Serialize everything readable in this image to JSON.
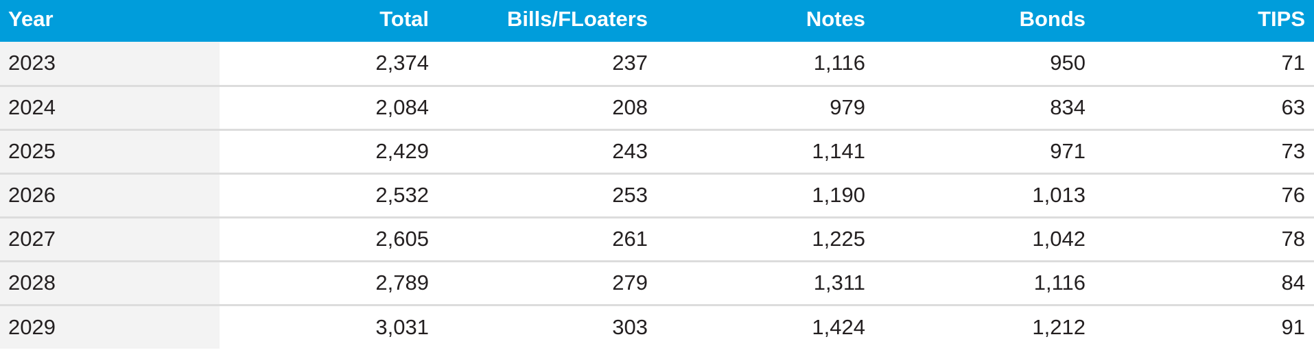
{
  "chart_data": {
    "type": "table",
    "colors": {
      "header_bg": "#009ddb",
      "header_text": "#ffffff",
      "first_col_bg": "#f3f3f3",
      "row_divider": "#dcdcdc"
    },
    "columns": [
      "Year",
      "Total",
      "Bills/FLoaters",
      "Notes",
      "Bonds",
      "TIPS"
    ],
    "rows": [
      [
        "2023",
        "2,374",
        "237",
        "1,116",
        "950",
        "71"
      ],
      [
        "2024",
        "2,084",
        "208",
        "979",
        "834",
        "63"
      ],
      [
        "2025",
        "2,429",
        "243",
        "1,141",
        "971",
        "73"
      ],
      [
        "2026",
        "2,532",
        "253",
        "1,190",
        "1,013",
        "76"
      ],
      [
        "2027",
        "2,605",
        "261",
        "1,225",
        "1,042",
        "78"
      ],
      [
        "2028",
        "2,789",
        "279",
        "1,311",
        "1,116",
        "84"
      ],
      [
        "2029",
        "3,031",
        "303",
        "1,424",
        "1,212",
        "91"
      ]
    ]
  }
}
